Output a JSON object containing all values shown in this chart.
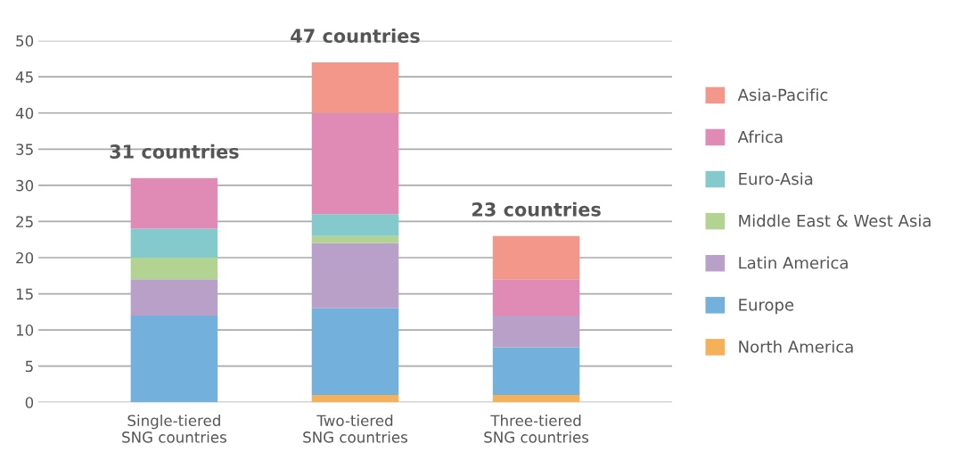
{
  "chart_data": {
    "type": "bar",
    "stacked": true,
    "categories": [
      "Single-tiered\nSNG countries",
      "Two-tiered\nSNG countries",
      "Three-tiered\nSNG countries"
    ],
    "series": [
      {
        "name": "North America",
        "color": "#f5b05a",
        "values": [
          0,
          1,
          1
        ]
      },
      {
        "name": "Europe",
        "color": "#73b1dc",
        "values": [
          12,
          12,
          6.6
        ]
      },
      {
        "name": "Latin America",
        "color": "#b8a0c9",
        "values": [
          5,
          9,
          4.4
        ]
      },
      {
        "name": "Middle East & West Asia",
        "color": "#b3d393",
        "values": [
          3,
          1,
          0
        ]
      },
      {
        "name": "Euro-Asia",
        "color": "#84cacc",
        "values": [
          4,
          3,
          0
        ]
      },
      {
        "name": "Africa",
        "color": "#e08bb5",
        "values": [
          7,
          14,
          5
        ]
      },
      {
        "name": "Asia-Pacific",
        "color": "#f2978a",
        "values": [
          0,
          7,
          6
        ]
      }
    ],
    "totals": [
      "31 countries",
      "47 countries",
      "23 countries"
    ],
    "ylim": [
      0,
      50
    ],
    "yticks": [
      0,
      5,
      10,
      15,
      20,
      25,
      30,
      35,
      40,
      45,
      50
    ],
    "grid": "y",
    "legend": "right"
  }
}
